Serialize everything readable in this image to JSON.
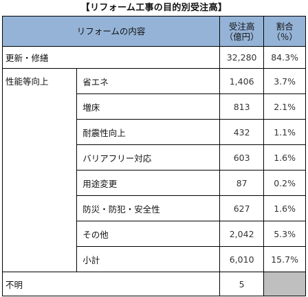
{
  "title": "【リフォーム工事の目的別受注高】",
  "headers": {
    "content": "リフォームの内容",
    "amount_line1": "受注高",
    "amount_line2": "（億円）",
    "share_line1": "割合",
    "share_line2": "（％）"
  },
  "rows": {
    "renewal": {
      "label": "更新・修繕",
      "amount": "32,280",
      "share": "84.3%"
    },
    "performance": {
      "label": "性能等向上",
      "items": [
        {
          "label": "省エネ",
          "amount": "1,406",
          "share": "3.7%"
        },
        {
          "label": "増床",
          "amount": "813",
          "share": "2.1%"
        },
        {
          "label": "耐震性向上",
          "amount": "432",
          "share": "1.1%"
        },
        {
          "label": "バリアフリー対応",
          "amount": "603",
          "share": "1.6%"
        },
        {
          "label": "用途変更",
          "amount": "87",
          "share": "0.2%"
        },
        {
          "label": "防災・防犯・安全性",
          "amount": "627",
          "share": "1.6%"
        },
        {
          "label": "その他",
          "amount": "2,042",
          "share": "5.3%"
        },
        {
          "label": "小計",
          "amount": "6,010",
          "share": "15.7%"
        }
      ]
    },
    "unknown": {
      "label": "不明",
      "amount": "5",
      "share": ""
    }
  }
}
